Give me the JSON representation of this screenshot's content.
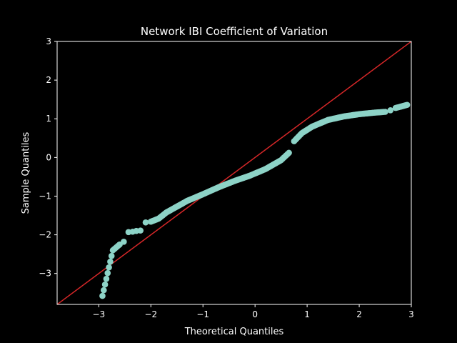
{
  "chart_data": {
    "type": "scatter",
    "title": "Network IBI Coefficient of Variation",
    "xlabel": "Theoretical Quantiles",
    "ylabel": "Sample Quantiles",
    "xlim": [
      -3.8,
      3.0
    ],
    "ylim": [
      -3.8,
      3.0
    ],
    "xticks": [
      -3,
      -2,
      -1,
      0,
      1,
      2,
      3
    ],
    "yticks": [
      -3,
      -2,
      -1,
      0,
      1,
      2,
      3
    ],
    "xtick_labels": [
      "−3",
      "−2",
      "−1",
      "0",
      "1",
      "2",
      "3"
    ],
    "ytick_labels": [
      "−3",
      "−2",
      "−1",
      "0",
      "1",
      "2",
      "3"
    ],
    "reference_line": {
      "color": "#d62728",
      "slope": 1,
      "intercept": 0
    },
    "marker_color": "#8dd3c7",
    "grid": false,
    "anchors": [
      [
        -2.93,
        -3.58
      ],
      [
        -2.73,
        -2.4
      ],
      [
        -2.6,
        -2.25
      ],
      [
        -2.52,
        -2.18
      ],
      [
        -2.43,
        -1.93
      ],
      [
        -2.35,
        -1.92
      ],
      [
        -2.28,
        -1.9
      ],
      [
        -2.2,
        -1.89
      ],
      [
        -2.1,
        -1.68
      ],
      [
        -2.0,
        -1.66
      ],
      [
        -1.85,
        -1.58
      ],
      [
        -1.7,
        -1.42
      ],
      [
        -1.5,
        -1.27
      ],
      [
        -1.3,
        -1.12
      ],
      [
        -1.0,
        -0.95
      ],
      [
        -0.7,
        -0.77
      ],
      [
        -0.4,
        -0.61
      ],
      [
        -0.1,
        -0.47
      ],
      [
        0.2,
        -0.3
      ],
      [
        0.5,
        -0.07
      ],
      [
        0.65,
        0.12
      ],
      [
        0.75,
        0.42
      ],
      [
        0.9,
        0.63
      ],
      [
        1.1,
        0.8
      ],
      [
        1.4,
        0.97
      ],
      [
        1.7,
        1.06
      ],
      [
        2.0,
        1.12
      ],
      [
        2.3,
        1.16
      ],
      [
        2.5,
        1.18
      ],
      [
        2.6,
        1.22
      ],
      [
        2.7,
        1.28
      ],
      [
        2.92,
        1.36
      ]
    ]
  }
}
